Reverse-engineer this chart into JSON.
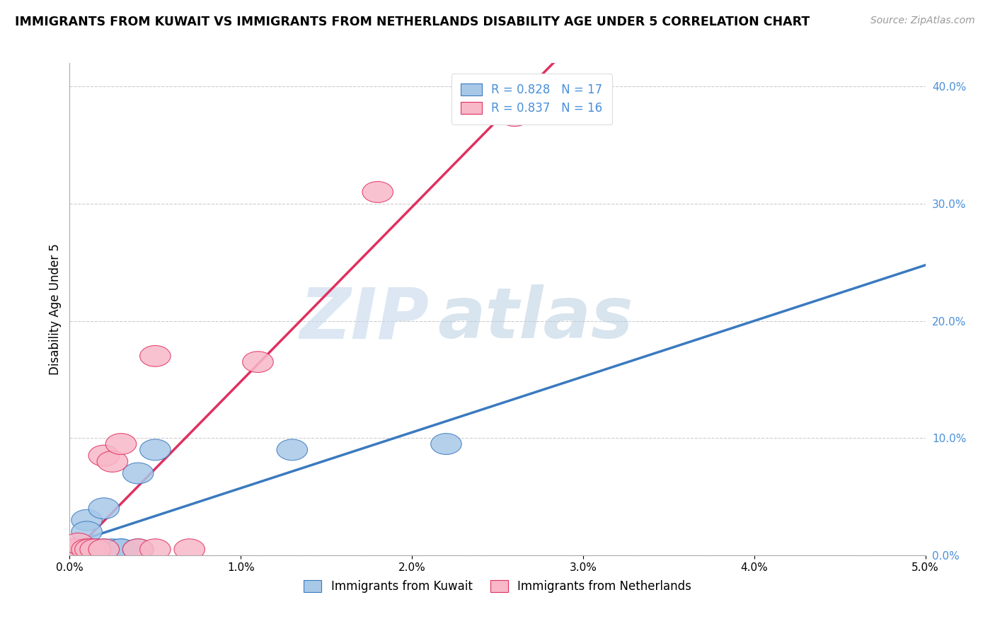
{
  "title": "IMMIGRANTS FROM KUWAIT VS IMMIGRANTS FROM NETHERLANDS DISABILITY AGE UNDER 5 CORRELATION CHART",
  "source": "Source: ZipAtlas.com",
  "ylabel": "Disability Age Under 5",
  "legend_label_1": "Immigrants from Kuwait",
  "legend_label_2": "Immigrants from Netherlands",
  "r1": 0.828,
  "n1": 17,
  "r2": 0.837,
  "n2": 16,
  "color1": "#a8c8e8",
  "color2": "#f8b8c8",
  "line1_color": "#3a7abf",
  "line2_color": "#e03060",
  "line1_dash_color": "#80b0d8",
  "xlim": [
    0.0,
    0.05
  ],
  "ylim": [
    0.0,
    0.42
  ],
  "yticks": [
    0.0,
    0.1,
    0.2,
    0.3,
    0.4
  ],
  "xticks": [
    0.0,
    0.01,
    0.02,
    0.03,
    0.04,
    0.05
  ],
  "kuwait_x": [
    0.0003,
    0.0005,
    0.0007,
    0.001,
    0.001,
    0.0012,
    0.0015,
    0.002,
    0.002,
    0.0025,
    0.003,
    0.003,
    0.004,
    0.004,
    0.005,
    0.013,
    0.022
  ],
  "kuwait_y": [
    0.005,
    0.005,
    0.003,
    0.03,
    0.02,
    0.005,
    0.005,
    0.005,
    0.04,
    0.005,
    0.005,
    0.005,
    0.07,
    0.005,
    0.09,
    0.09,
    0.095
  ],
  "netherlands_x": [
    0.0003,
    0.0005,
    0.001,
    0.0012,
    0.0015,
    0.002,
    0.002,
    0.0025,
    0.003,
    0.004,
    0.005,
    0.005,
    0.007,
    0.011,
    0.018,
    0.026
  ],
  "netherlands_y": [
    0.005,
    0.01,
    0.005,
    0.005,
    0.005,
    0.005,
    0.085,
    0.08,
    0.095,
    0.005,
    0.005,
    0.17,
    0.005,
    0.165,
    0.31,
    0.375
  ]
}
